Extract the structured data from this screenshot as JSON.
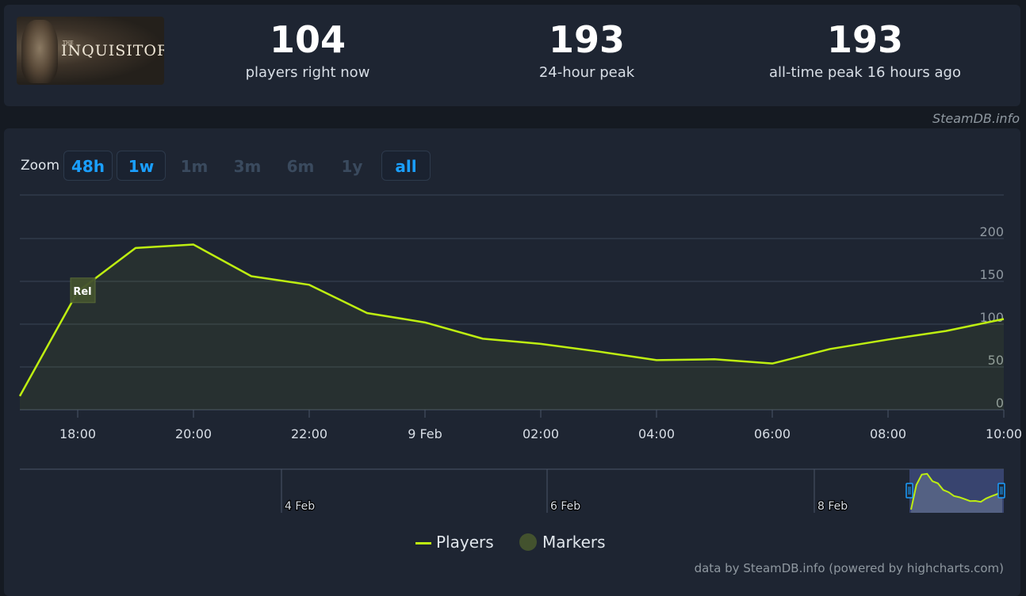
{
  "game": {
    "logo_small": "THE",
    "logo_text": "INQUISITOR"
  },
  "stats": [
    {
      "value": "104",
      "label": "players right now"
    },
    {
      "value": "193",
      "label": "24-hour peak"
    },
    {
      "value": "193",
      "label": "all-time peak 16 hours ago"
    }
  ],
  "credit": "SteamDB.info",
  "zoom": {
    "label": "Zoom",
    "buttons": [
      {
        "label": "48h",
        "enabled": true
      },
      {
        "label": "1w",
        "enabled": true
      },
      {
        "label": "1m",
        "enabled": false
      },
      {
        "label": "3m",
        "enabled": false
      },
      {
        "label": "6m",
        "enabled": false
      },
      {
        "label": "1y",
        "enabled": false
      },
      {
        "label": "all",
        "enabled": true
      }
    ]
  },
  "colors": {
    "series": "#beee11",
    "marker": "#43522e",
    "navigator_selection": "#3d4a7a"
  },
  "chart_data": {
    "type": "line",
    "x": [
      "17:00",
      "18:00",
      "19:00",
      "20:00",
      "21:00",
      "22:00",
      "23:00",
      "00:00",
      "01:00",
      "02:00",
      "03:00",
      "04:00",
      "05:00",
      "06:00",
      "07:00",
      "08:00",
      "09:00",
      "10:00"
    ],
    "series": [
      {
        "name": "Players",
        "values": [
          16,
          138,
          189,
          193,
          156,
          146,
          113,
          102,
          83,
          77,
          68,
          58,
          59,
          54,
          71,
          82,
          92,
          106
        ]
      }
    ],
    "ylim": [
      0,
      200
    ],
    "yticks": [
      "0",
      "50",
      "100",
      "150",
      "200"
    ],
    "xtick_labels": [
      "18:00",
      "20:00",
      "22:00",
      "9 Feb",
      "02:00",
      "04:00",
      "06:00",
      "08:00",
      "10:00"
    ],
    "markers": [
      {
        "label": "Rel",
        "x": "18:00",
        "y": 140
      }
    ],
    "legend": [
      "Players",
      "Markers"
    ],
    "navigator_labels": [
      "4 Feb",
      "6 Feb",
      "8 Feb"
    ],
    "grid": true
  },
  "footer_credit": "data by SteamDB.info (powered by highcharts.com)"
}
